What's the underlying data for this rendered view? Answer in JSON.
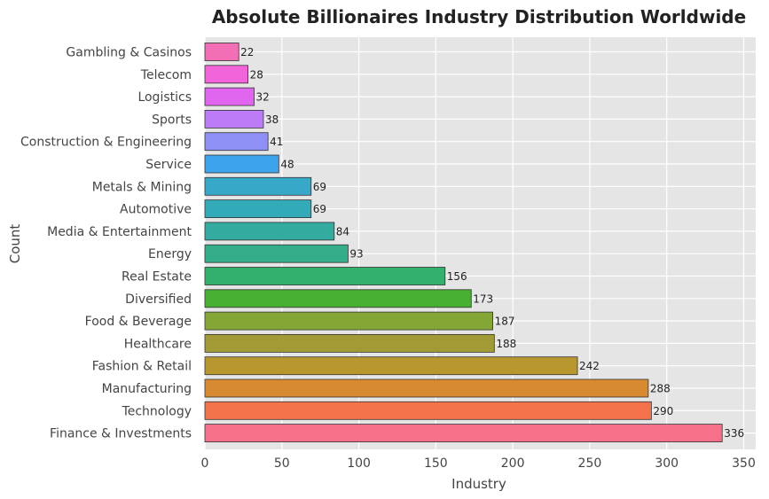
{
  "chart_data": {
    "type": "bar",
    "orientation": "horizontal",
    "title": "Absolute Billionaires Industry Distribution Worldwide",
    "xlabel": "Industry",
    "ylabel": "Count",
    "xlim": [
      0,
      350
    ],
    "xticks": [
      0,
      50,
      100,
      150,
      200,
      250,
      300,
      350
    ],
    "grid": true,
    "categories": [
      "Gambling & Casinos",
      "Telecom",
      "Logistics",
      "Sports",
      "Construction & Engineering",
      "Service",
      "Metals & Mining",
      "Automotive",
      "Media & Entertainment",
      "Energy",
      "Real Estate",
      "Diversified",
      "Food & Beverage",
      "Healthcare",
      "Fashion & Retail",
      "Manufacturing",
      "Technology",
      "Finance & Investments"
    ],
    "values": [
      22,
      28,
      32,
      38,
      41,
      48,
      69,
      69,
      84,
      93,
      156,
      173,
      187,
      188,
      242,
      288,
      290,
      336
    ],
    "colors": [
      "#f36fb5",
      "#f264d9",
      "#e066f0",
      "#bd7cf7",
      "#8f90f5",
      "#3ba4ed",
      "#37a8c7",
      "#33aab8",
      "#33ab9f",
      "#33ad8a",
      "#32b16d",
      "#47b032",
      "#84a634",
      "#a29a34",
      "#b8972f",
      "#d88a31",
      "#f4734a",
      "#f6708a"
    ]
  }
}
